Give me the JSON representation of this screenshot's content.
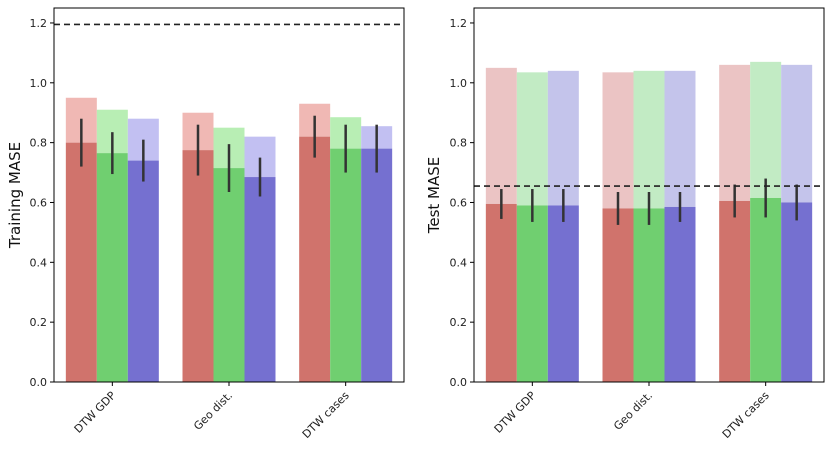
{
  "chart_data": [
    {
      "type": "bar",
      "ylabel": "Training MASE",
      "xlabel": "",
      "categories": [
        "DTW GDP",
        "Geo dist.",
        "DTW cases"
      ],
      "ylim": [
        0,
        1.25
      ],
      "yticks": [
        "0.0",
        "0.2",
        "0.4",
        "0.6",
        "0.8",
        "1.0",
        "1.2"
      ],
      "reference_line": 1.195,
      "colors": {
        "light": [
          "#f0b8b4",
          "#b8eeb4",
          "#c2c0f2"
        ],
        "solid": [
          "#d0736c",
          "#70cf70",
          "#7570d0"
        ]
      },
      "series": [
        {
          "upper": [
            0.95,
            0.9,
            0.93
          ],
          "values": [
            0.8,
            0.775,
            0.82
          ],
          "err": [
            0.08,
            0.085,
            0.07
          ]
        },
        {
          "upper": [
            0.91,
            0.85,
            0.885
          ],
          "values": [
            0.765,
            0.715,
            0.78
          ],
          "err": [
            0.07,
            0.08,
            0.08
          ]
        },
        {
          "upper": [
            0.88,
            0.82,
            0.855
          ],
          "values": [
            0.74,
            0.685,
            0.78
          ],
          "err": [
            0.07,
            0.065,
            0.08
          ]
        }
      ]
    },
    {
      "type": "bar",
      "ylabel": "Test MASE",
      "xlabel": "",
      "categories": [
        "DTW GDP",
        "Geo dist.",
        "DTW cases"
      ],
      "ylim": [
        0,
        1.25
      ],
      "yticks": [
        "0.0",
        "0.2",
        "0.4",
        "0.6",
        "0.8",
        "1.0",
        "1.2"
      ],
      "reference_line": 0.655,
      "colors": {
        "light": [
          "#ebc4c4",
          "#c2ebc4",
          "#c4c4eb"
        ],
        "solid": [
          "#d0736c",
          "#70cf70",
          "#7570d0"
        ]
      },
      "series": [
        {
          "upper": [
            1.05,
            1.035,
            1.06
          ],
          "values": [
            0.595,
            0.58,
            0.605
          ],
          "err": [
            0.05,
            0.055,
            0.055
          ]
        },
        {
          "upper": [
            1.035,
            1.04,
            1.07
          ],
          "values": [
            0.59,
            0.58,
            0.615
          ],
          "err": [
            0.055,
            0.055,
            0.065
          ]
        },
        {
          "upper": [
            1.04,
            1.04,
            1.06
          ],
          "values": [
            0.59,
            0.585,
            0.6
          ],
          "err": [
            0.055,
            0.05,
            0.06
          ]
        }
      ]
    }
  ]
}
